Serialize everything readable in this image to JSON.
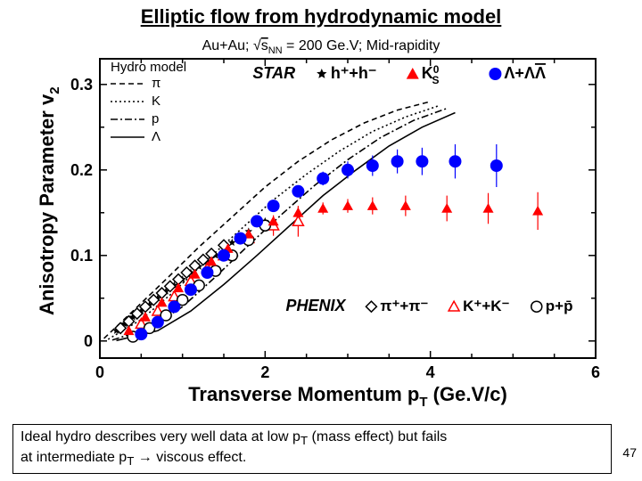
{
  "title": "Elliptic flow from hydrodynamic model",
  "page_number": "47",
  "caption_line1": "Ideal hydro describes very well data at low p",
  "caption_sub1": "T",
  "caption_line2": " (mass effect) but fails",
  "caption_line3": "at intermediate p",
  "caption_sub2": "T",
  "caption_line4": " → viscous effect.",
  "chart": {
    "type": "scatter+line",
    "title": "Au+Au; √s",
    "title_sub": "NN",
    "title_rest": " = 200 Ge.V; Mid-rapidity",
    "ylabel": "Anisotropy Parameter v",
    "ylabel_sub": "2",
    "xlabel": "Transverse Momentum p",
    "xlabel_sub": "T",
    "xlabel_rest": " (Ge.V/c)",
    "background_color": "#ffffff",
    "axis_color": "#000000",
    "xlim": [
      0,
      6
    ],
    "ylim": [
      -0.02,
      0.33
    ],
    "xticks": [
      0,
      2,
      4,
      6
    ],
    "yticks": [
      0,
      0.1,
      0.2,
      0.3
    ],
    "xtick_labels": [
      "0",
      "2",
      "4",
      "6"
    ],
    "ytick_labels": [
      "0",
      "0.1",
      "0.2",
      "0.3"
    ],
    "title_fontsize": 16,
    "axis_label_fontsize": 22,
    "tick_fontsize": 18,
    "hydro_legend": {
      "title": "Hydro model",
      "title_fontsize": 15,
      "items": [
        {
          "label": "π",
          "dash": "6,4",
          "width": 1.5
        },
        {
          "label": "K",
          "dash": "2,3",
          "width": 1.5
        },
        {
          "label": "p",
          "dash": "8,3,2,3",
          "width": 1.5
        },
        {
          "label": "Λ",
          "dash": "none",
          "width": 1.5
        }
      ]
    },
    "hydro_curves": [
      {
        "name": "pi",
        "dash": "6,4",
        "pts": [
          [
            0.05,
            0.003
          ],
          [
            0.4,
            0.035
          ],
          [
            0.8,
            0.072
          ],
          [
            1.2,
            0.11
          ],
          [
            1.6,
            0.145
          ],
          [
            2.0,
            0.18
          ],
          [
            2.4,
            0.21
          ],
          [
            2.8,
            0.235
          ],
          [
            3.2,
            0.255
          ],
          [
            3.6,
            0.27
          ],
          [
            4.0,
            0.28
          ]
        ]
      },
      {
        "name": "K",
        "dash": "2,3",
        "pts": [
          [
            0.1,
            0.002
          ],
          [
            0.5,
            0.025
          ],
          [
            0.9,
            0.058
          ],
          [
            1.3,
            0.095
          ],
          [
            1.7,
            0.13
          ],
          [
            2.1,
            0.165
          ],
          [
            2.5,
            0.195
          ],
          [
            2.9,
            0.222
          ],
          [
            3.3,
            0.245
          ],
          [
            3.7,
            0.262
          ],
          [
            4.1,
            0.275
          ]
        ]
      },
      {
        "name": "p",
        "dash": "8,3,2,3",
        "pts": [
          [
            0.15,
            0.001
          ],
          [
            0.6,
            0.015
          ],
          [
            1.0,
            0.04
          ],
          [
            1.4,
            0.075
          ],
          [
            1.8,
            0.112
          ],
          [
            2.2,
            0.148
          ],
          [
            2.6,
            0.182
          ],
          [
            3.0,
            0.212
          ],
          [
            3.4,
            0.238
          ],
          [
            3.8,
            0.258
          ],
          [
            4.2,
            0.272
          ]
        ]
      },
      {
        "name": "Lambda",
        "dash": "none",
        "pts": [
          [
            0.2,
            0.0005
          ],
          [
            0.7,
            0.012
          ],
          [
            1.1,
            0.035
          ],
          [
            1.5,
            0.066
          ],
          [
            1.9,
            0.1
          ],
          [
            2.3,
            0.135
          ],
          [
            2.7,
            0.17
          ],
          [
            3.1,
            0.2
          ],
          [
            3.5,
            0.228
          ],
          [
            3.9,
            0.25
          ],
          [
            4.3,
            0.267
          ]
        ]
      }
    ],
    "star_label": "STAR",
    "phenix_label": "PHENIX",
    "star_legend": [
      {
        "label": "h⁺+h⁻",
        "marker": "star",
        "fill": "#000000",
        "size": 6
      },
      {
        "label": "K⁰_S",
        "marker": "triangle",
        "fill": "#ff0000",
        "size": 7
      },
      {
        "label": "Λ+Λ̄",
        "marker": "circle",
        "fill": "#0000ff",
        "size": 7
      }
    ],
    "phenix_legend": [
      {
        "label": "π⁺+π⁻",
        "marker": "diamond-open",
        "stroke": "#000000",
        "size": 7
      },
      {
        "label": "K⁺+K⁻",
        "marker": "triangle-open",
        "stroke": "#ff0000",
        "size": 7
      },
      {
        "label": "p+p̄",
        "marker": "circle-open",
        "stroke": "#000000",
        "size": 7
      }
    ],
    "series": {
      "star_h": {
        "marker": "star",
        "fill": "#000000",
        "size": 4.5,
        "pts": [
          [
            0.2,
            0.012
          ],
          [
            0.3,
            0.02
          ],
          [
            0.4,
            0.028
          ],
          [
            0.5,
            0.035
          ],
          [
            0.6,
            0.042
          ],
          [
            0.7,
            0.05
          ],
          [
            0.8,
            0.058
          ],
          [
            0.9,
            0.065
          ],
          [
            1.0,
            0.072
          ],
          [
            1.1,
            0.08
          ],
          [
            1.2,
            0.087
          ],
          [
            1.3,
            0.093
          ],
          [
            1.4,
            0.1
          ],
          [
            1.5,
            0.108
          ],
          [
            1.6,
            0.115
          ],
          [
            1.8,
            0.128
          ],
          [
            2.0,
            0.14
          ]
        ]
      },
      "phenix_pi": {
        "marker": "diamond-open",
        "stroke": "#000000",
        "size": 6,
        "pts": [
          [
            0.25,
            0.015
          ],
          [
            0.35,
            0.023
          ],
          [
            0.45,
            0.032
          ],
          [
            0.55,
            0.04
          ],
          [
            0.65,
            0.048
          ],
          [
            0.75,
            0.056
          ],
          [
            0.85,
            0.064
          ],
          [
            0.95,
            0.072
          ],
          [
            1.05,
            0.08
          ],
          [
            1.15,
            0.088
          ],
          [
            1.25,
            0.095
          ],
          [
            1.35,
            0.102
          ],
          [
            1.5,
            0.112
          ]
        ]
      },
      "phenix_K": {
        "marker": "triangle-open",
        "stroke": "#ff0000",
        "size": 6,
        "pts": [
          [
            0.5,
            0.02
          ],
          [
            0.7,
            0.035
          ],
          [
            0.9,
            0.052
          ],
          [
            1.1,
            0.07
          ],
          [
            1.3,
            0.085
          ],
          [
            1.5,
            0.1
          ],
          [
            1.8,
            0.12
          ],
          [
            2.1,
            0.135
          ],
          [
            2.4,
            0.14
          ]
        ],
        "ey": [
          0,
          0,
          0,
          0,
          0,
          0.005,
          0.008,
          0.012,
          0.018
        ]
      },
      "phenix_p": {
        "marker": "circle-open",
        "stroke": "#000000",
        "size": 6,
        "pts": [
          [
            0.4,
            0.005
          ],
          [
            0.6,
            0.015
          ],
          [
            0.8,
            0.03
          ],
          [
            1.0,
            0.048
          ],
          [
            1.2,
            0.065
          ],
          [
            1.4,
            0.082
          ],
          [
            1.6,
            0.1
          ],
          [
            1.8,
            0.118
          ],
          [
            2.0,
            0.135
          ]
        ]
      },
      "ks": {
        "marker": "triangle",
        "fill": "#ff0000",
        "size": 6,
        "pts": [
          [
            0.35,
            0.012
          ],
          [
            0.55,
            0.028
          ],
          [
            0.75,
            0.045
          ],
          [
            0.95,
            0.062
          ],
          [
            1.15,
            0.078
          ],
          [
            1.35,
            0.093
          ],
          [
            1.55,
            0.108
          ],
          [
            1.8,
            0.125
          ],
          [
            2.1,
            0.14
          ],
          [
            2.4,
            0.15
          ],
          [
            2.7,
            0.155
          ],
          [
            3.0,
            0.158
          ],
          [
            3.3,
            0.158
          ],
          [
            3.7,
            0.158
          ],
          [
            4.2,
            0.155
          ],
          [
            4.7,
            0.155
          ],
          [
            5.3,
            0.152
          ]
        ],
        "ey": [
          0,
          0,
          0,
          0,
          0,
          0,
          0,
          0,
          0.005,
          0.006,
          0.007,
          0.008,
          0.01,
          0.012,
          0.015,
          0.018,
          0.022
        ]
      },
      "lambda": {
        "marker": "circle",
        "fill": "#0000ff",
        "size": 7,
        "pts": [
          [
            0.5,
            0.008
          ],
          [
            0.7,
            0.022
          ],
          [
            0.9,
            0.04
          ],
          [
            1.1,
            0.06
          ],
          [
            1.3,
            0.08
          ],
          [
            1.5,
            0.1
          ],
          [
            1.7,
            0.12
          ],
          [
            1.9,
            0.14
          ],
          [
            2.1,
            0.158
          ],
          [
            2.4,
            0.175
          ],
          [
            2.7,
            0.19
          ],
          [
            3.0,
            0.2
          ],
          [
            3.3,
            0.205
          ],
          [
            3.6,
            0.21
          ],
          [
            3.9,
            0.21
          ],
          [
            4.3,
            0.21
          ],
          [
            4.8,
            0.205
          ]
        ],
        "ey": [
          0,
          0,
          0,
          0,
          0,
          0,
          0,
          0,
          0.005,
          0.006,
          0.008,
          0.01,
          0.012,
          0.014,
          0.016,
          0.02,
          0.025
        ]
      }
    }
  }
}
